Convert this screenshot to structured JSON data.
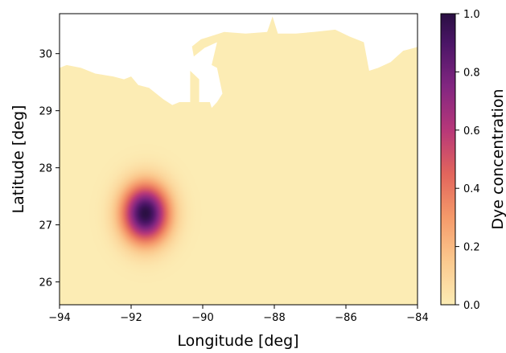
{
  "chart_data": {
    "type": "heatmap",
    "title": "",
    "xlabel": "Longitude [deg]",
    "ylabel": "Latitude [deg]",
    "xlim": [
      -94,
      -84
    ],
    "ylim": [
      25.6,
      30.7
    ],
    "xticks": [
      -94,
      -92,
      -90,
      -88,
      -86,
      -84
    ],
    "xtick_labels": [
      "−94",
      "−92",
      "−90",
      "−88",
      "−86",
      "−84"
    ],
    "yticks": [
      26,
      27,
      28,
      29,
      30
    ],
    "ytick_labels": [
      "26",
      "27",
      "28",
      "29",
      "30"
    ],
    "grid": false,
    "colormap": "magma_r",
    "background_color": "#fcecb4",
    "land_color": "#ffffff",
    "dye_blob": {
      "center_lon": -91.6,
      "center_lat": 27.2,
      "sigma_lon": 0.45,
      "sigma_lat": 0.35,
      "peak": 1.0,
      "cutoff_radius": 3.5
    },
    "coastline": [
      [
        -94.0,
        29.75
      ],
      [
        -93.8,
        29.8
      ],
      [
        -93.4,
        29.75
      ],
      [
        -93.0,
        29.65
      ],
      [
        -92.5,
        29.6
      ],
      [
        -92.2,
        29.55
      ],
      [
        -92.0,
        29.6
      ],
      [
        -91.8,
        29.45
      ],
      [
        -91.5,
        29.4
      ],
      [
        -91.3,
        29.3
      ],
      [
        -91.1,
        29.2
      ],
      [
        -90.85,
        29.1
      ],
      [
        -90.65,
        29.15
      ],
      [
        -90.35,
        29.15
      ],
      [
        -90.35,
        29.7
      ],
      [
        -90.1,
        29.55
      ],
      [
        -90.1,
        29.15
      ],
      [
        -89.8,
        29.15
      ],
      [
        -89.75,
        29.05
      ],
      [
        -89.6,
        29.15
      ],
      [
        -89.45,
        29.3
      ],
      [
        -89.6,
        29.75
      ],
      [
        -89.75,
        29.8
      ],
      [
        -89.6,
        30.2
      ],
      [
        -89.95,
        30.1
      ],
      [
        -90.25,
        29.95
      ],
      [
        -90.35,
        30.3
      ],
      [
        -90.35,
        30.1
      ],
      [
        -90.05,
        30.25
      ],
      [
        -89.4,
        30.38
      ],
      [
        -88.8,
        30.35
      ],
      [
        -88.2,
        30.38
      ],
      [
        -88.05,
        30.65
      ],
      [
        -87.9,
        30.35
      ],
      [
        -87.4,
        30.35
      ],
      [
        -86.9,
        30.38
      ],
      [
        -86.3,
        30.42
      ],
      [
        -85.9,
        30.3
      ],
      [
        -85.5,
        30.2
      ],
      [
        -85.35,
        29.7
      ],
      [
        -85.1,
        29.75
      ],
      [
        -84.75,
        29.85
      ],
      [
        -84.4,
        30.05
      ],
      [
        -84.1,
        30.1
      ],
      [
        -84.0,
        30.12
      ]
    ],
    "colorbar": {
      "label": "Dye concentration",
      "min": 0.0,
      "max": 1.0,
      "ticks": [
        0.0,
        0.2,
        0.4,
        0.6,
        0.8,
        1.0
      ],
      "tick_labels": [
        "0.0",
        "0.2",
        "0.4",
        "0.6",
        "0.8",
        "1.0"
      ]
    }
  }
}
